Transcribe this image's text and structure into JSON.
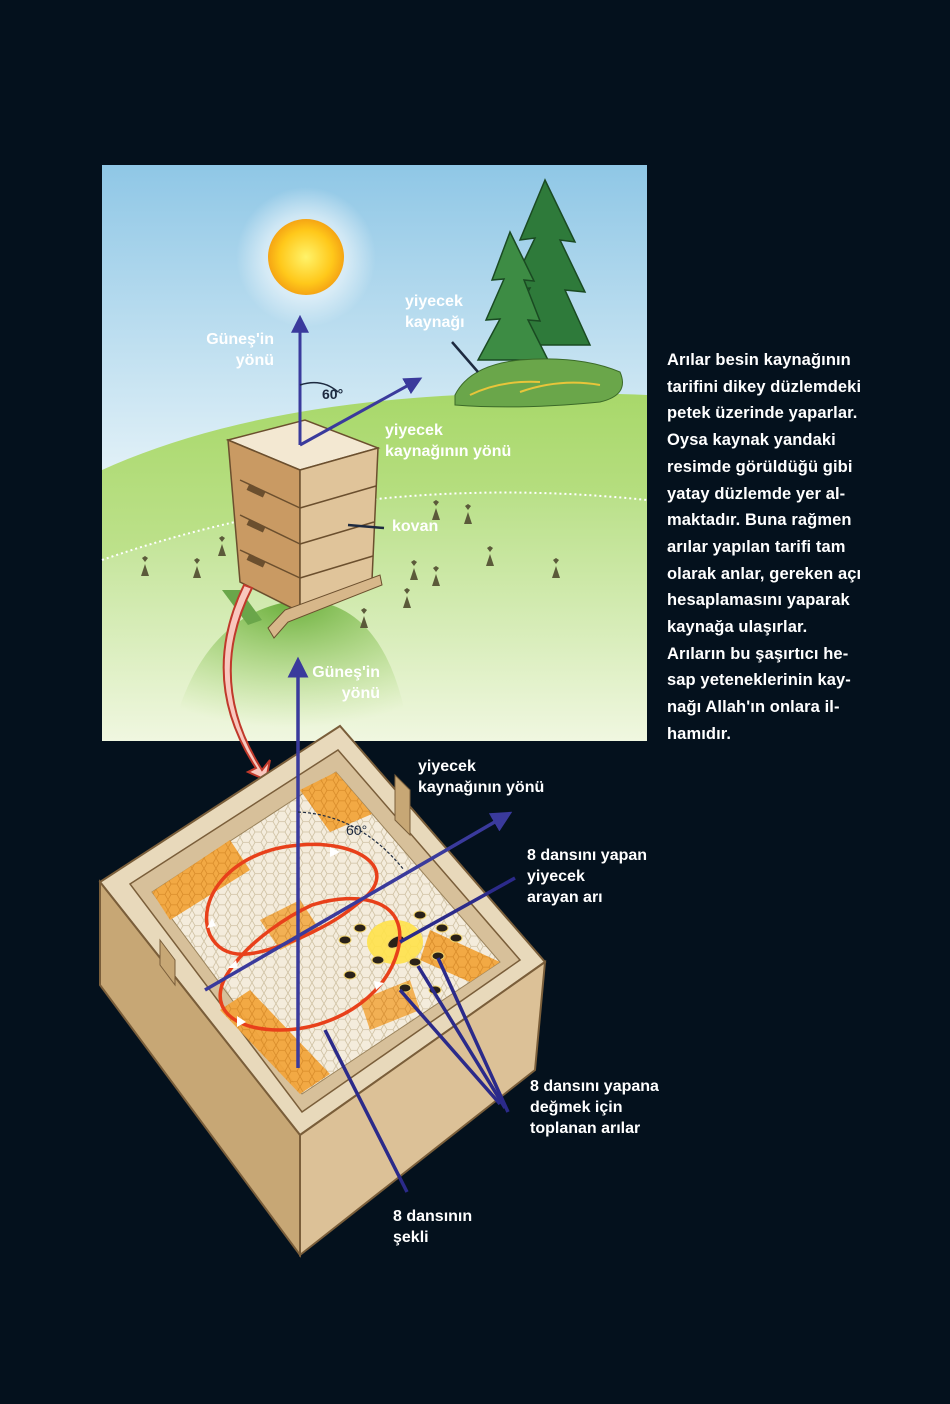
{
  "labels": {
    "sun_direction_top": "Güneş'in\nyönü",
    "food_source": "yiyecek\nkaynağı",
    "angle_top": "60°",
    "food_direction_top": "yiyecek\nkaynağının yönü",
    "hive": "kovan",
    "sun_direction_bottom": "Güneş'in\nyönü",
    "food_direction_bottom": "yiyecek\nkaynağının yönü",
    "angle_bottom": "60°",
    "dancing_bee": "8 dansını yapan\nyiyecek\narayan arı",
    "gathered_bees": "8 dansını yapana\ndeğmek için\ntoplanan arılar",
    "dance_shape": "8 dansının\nşekli"
  },
  "paragraph": "Arılar besin kaynağının\ntarifini dikey düzlemdeki\npetek üzerinde yaparlar.\nOysa kaynak yandaki\nresimde görüldüğü gibi\nyatay düzlemde yer al-\nmaktadır. Buna rağmen\narılar yapılan tarifi tam\nolarak anlar, gereken açı\nhesaplamasını yaparak\nkaynağa ulaşırlar.\nArıların bu şaşırtıcı he-\nsap yeteneklerinin kay-\nnağı Allah'ın onlara il-\nhamıdır.",
  "colors": {
    "background": "#04111d",
    "arrow": "#3a3a9c",
    "dance_path": "#e8401a",
    "grass": "#8cc84a",
    "sky": "#9fd0ea",
    "sun": "#ffd21e",
    "box_wood": "#c9a877",
    "honeycomb": "#f3ead8",
    "honey": "#f4a53a"
  }
}
